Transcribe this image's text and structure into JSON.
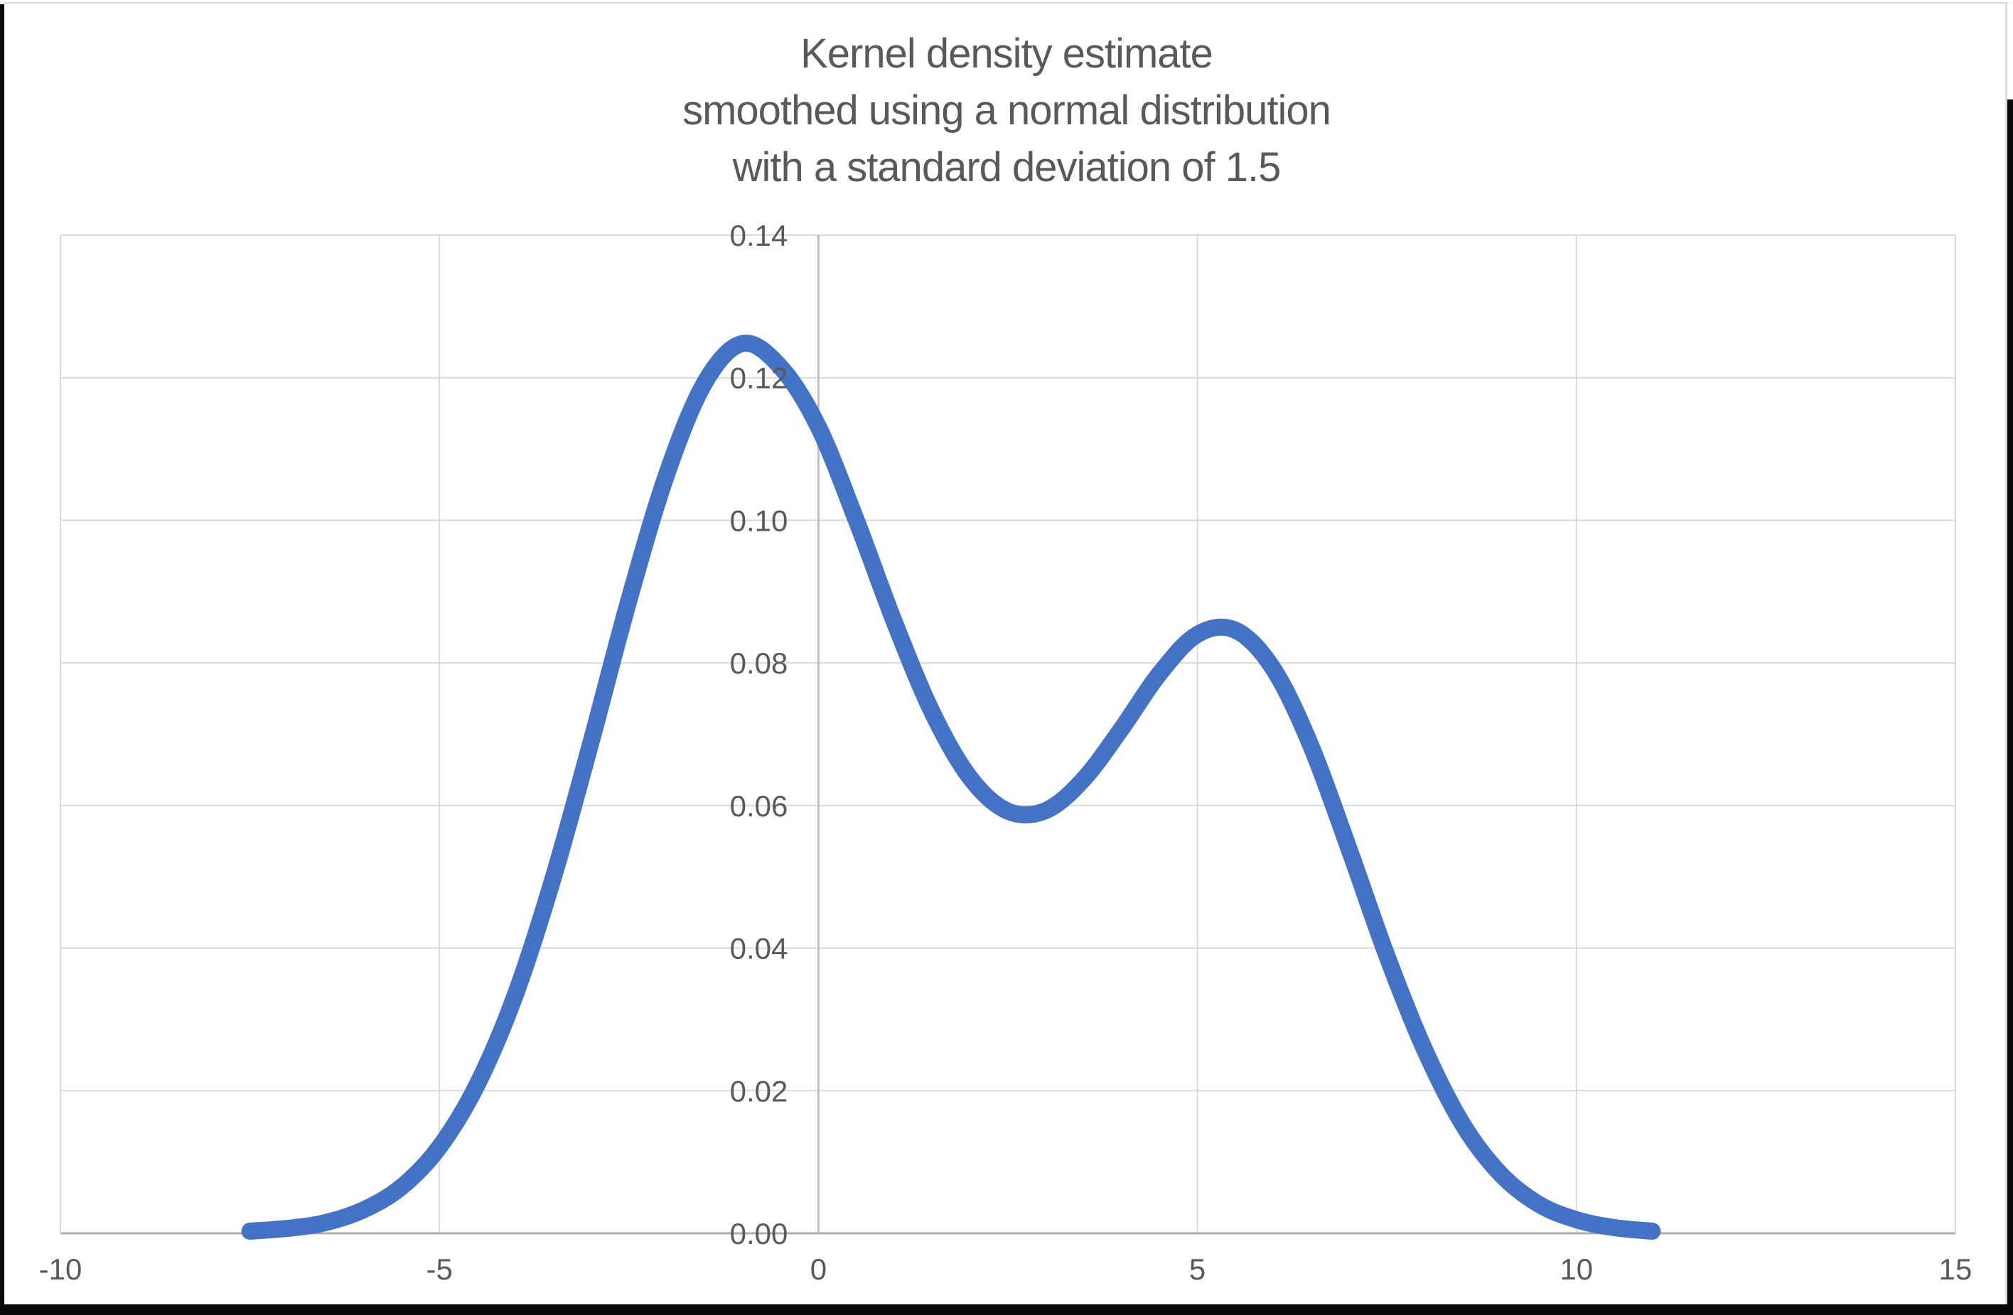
{
  "chart_data": {
    "type": "line",
    "title": "Kernel density estimate smoothed using a normal distribution with a standard deviation of 1.5",
    "title_lines": [
      "Kernel density estimate",
      "smoothed using a normal distribution",
      "with a standard deviation of 1.5"
    ],
    "xlabel": "",
    "ylabel": "",
    "xlim": [
      -10,
      15
    ],
    "ylim": [
      0,
      0.14
    ],
    "grid": true,
    "legend": false,
    "x_axis": {
      "min": -10,
      "max": 15,
      "ticks": [
        -10,
        -5,
        0,
        5,
        10,
        15
      ],
      "tick_labels": [
        "-10",
        "-5",
        "0",
        "5",
        "10",
        "15"
      ]
    },
    "y_axis": {
      "min": 0,
      "max": 0.14,
      "ticks": [
        0,
        0.02,
        0.04,
        0.06,
        0.08,
        0.1,
        0.12,
        0.14
      ],
      "tick_labels": [
        "0.00",
        "0.02",
        "0.04",
        "0.06",
        "0.08",
        "0.10",
        "0.12",
        "0.14"
      ]
    },
    "series": [
      {
        "name": "Kernel density estimate",
        "color": "#4472C4",
        "stroke_width": 24,
        "smoothed": true,
        "points": [
          [
            -7.5,
            0.0003
          ],
          [
            -7.0,
            0.0007
          ],
          [
            -6.5,
            0.0015
          ],
          [
            -6.0,
            0.0033
          ],
          [
            -5.5,
            0.0065
          ],
          [
            -5.0,
            0.0121
          ],
          [
            -4.5,
            0.0209
          ],
          [
            -4.0,
            0.0334
          ],
          [
            -3.5,
            0.0498
          ],
          [
            -3.0,
            0.0689
          ],
          [
            -2.5,
            0.0888
          ],
          [
            -2.0,
            0.1065
          ],
          [
            -1.5,
            0.1193
          ],
          [
            -1.0,
            0.1248
          ],
          [
            -0.5,
            0.1215
          ],
          [
            0.0,
            0.1131
          ],
          [
            0.5,
            0.1
          ],
          [
            1.0,
            0.0858
          ],
          [
            1.5,
            0.0731
          ],
          [
            2.0,
            0.0639
          ],
          [
            2.5,
            0.0592
          ],
          [
            3.0,
            0.0593
          ],
          [
            3.5,
            0.0637
          ],
          [
            4.0,
            0.0708
          ],
          [
            4.5,
            0.0785
          ],
          [
            5.0,
            0.084
          ],
          [
            5.5,
            0.0846
          ],
          [
            6.0,
            0.0792
          ],
          [
            6.5,
            0.0683
          ],
          [
            7.0,
            0.0539
          ],
          [
            7.5,
            0.0389
          ],
          [
            8.0,
            0.0257
          ],
          [
            8.5,
            0.0153
          ],
          [
            9.0,
            0.0083
          ],
          [
            9.5,
            0.0041
          ],
          [
            10.0,
            0.0019
          ],
          [
            10.5,
            0.0008
          ],
          [
            11.0,
            0.0003
          ]
        ]
      }
    ],
    "features": {
      "peak_1": [
        -1.05,
        0.125
      ],
      "valley": [
        3.0,
        0.059
      ],
      "peak_2": [
        5.5,
        0.085
      ]
    }
  },
  "colors": {
    "background": "#FFFFFF",
    "gridline": "#D9D9D9",
    "x_axis_line": "#ACACAC",
    "y_axis_line": "#BFBFBF",
    "tick_text": "#595959",
    "title_text": "#595959",
    "series_blue": "#4472C4",
    "frame_black": "#0A0A0A",
    "chart_border_gray": "#D9D9D9"
  }
}
